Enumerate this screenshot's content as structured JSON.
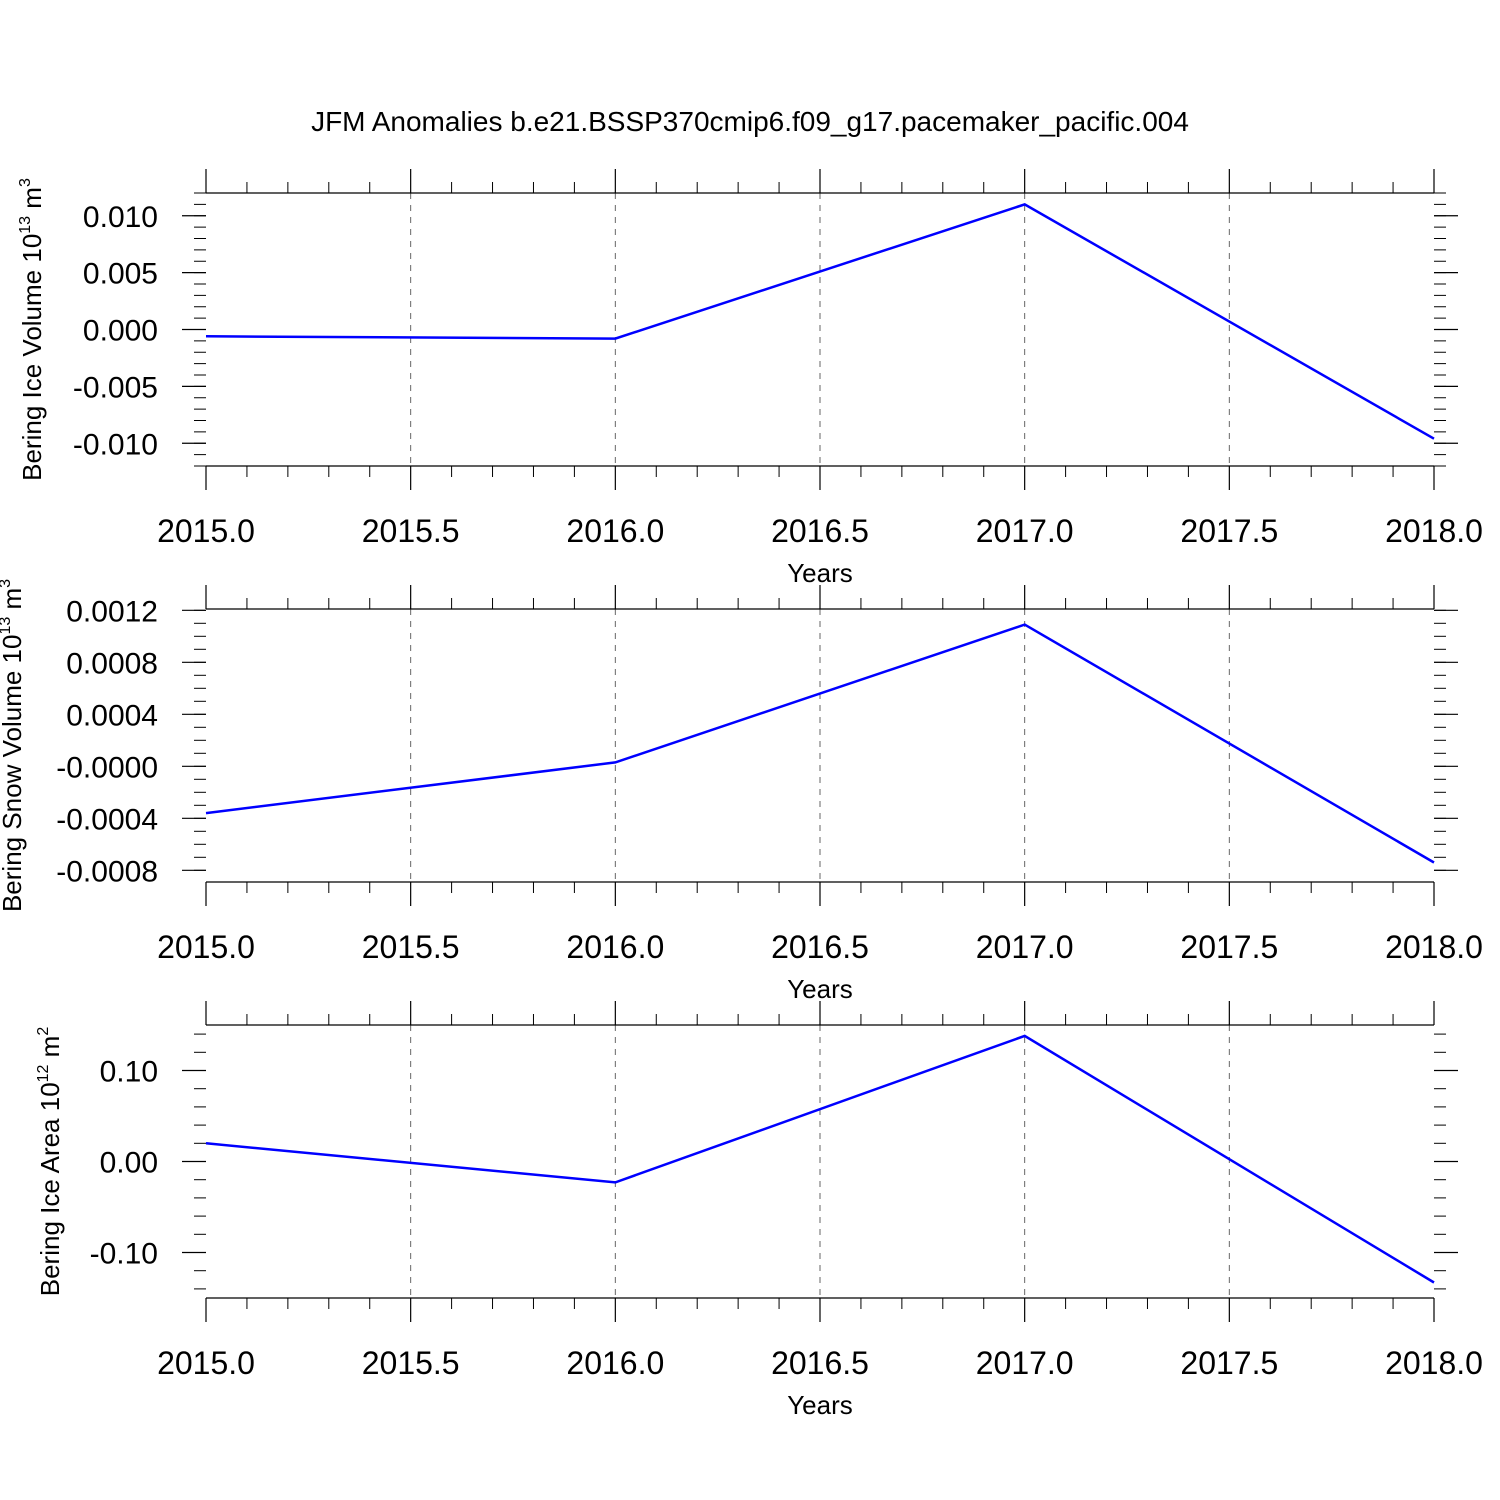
{
  "title": "JFM Anomalies b.e21.BSSP370cmip6.f09_g17.pacemaker_pacific.004",
  "line_color": "#0000ff",
  "chart_data": [
    {
      "type": "line",
      "xlabel": "Years",
      "ylabel": {
        "text": "Bering Ice Volume 10",
        "sup": "13",
        "unit": " m",
        "unit_sup": "3"
      },
      "xlim": [
        2015.0,
        2018.0
      ],
      "ylim": [
        -0.012,
        0.012
      ],
      "x_ticks": [
        2015.0,
        2015.5,
        2016.0,
        2016.5,
        2017.0,
        2017.5,
        2018.0
      ],
      "x_tick_labels": [
        "2015.0",
        "2015.5",
        "2016.0",
        "2016.5",
        "2017.0",
        "2017.5",
        "2018.0"
      ],
      "y_ticks": [
        0.01,
        0.005,
        0.0,
        -0.005,
        -0.01
      ],
      "y_tick_labels": [
        "0.010",
        "0.005",
        "0.000",
        "-0.005",
        "-0.010"
      ],
      "y_minor_step": 0.001,
      "x": [
        2015.0,
        2016.0,
        2017.0,
        2018.0
      ],
      "y": [
        -0.0006,
        -0.0008,
        0.011,
        -0.0096
      ]
    },
    {
      "type": "line",
      "xlabel": "Years",
      "ylabel": {
        "text": "Bering Snow Volume 10",
        "sup": "13",
        "unit": " m",
        "unit_sup": "3"
      },
      "xlim": [
        2015.0,
        2018.0
      ],
      "ylim": [
        -0.00089,
        0.00121
      ],
      "x_ticks": [
        2015.0,
        2015.5,
        2016.0,
        2016.5,
        2017.0,
        2017.5,
        2018.0
      ],
      "x_tick_labels": [
        "2015.0",
        "2015.5",
        "2016.0",
        "2016.5",
        "2017.0",
        "2017.5",
        "2018.0"
      ],
      "y_ticks": [
        0.0012,
        0.0008,
        0.0004,
        0.0,
        -0.0004,
        -0.0008
      ],
      "y_tick_labels": [
        "0.0012",
        "0.0008",
        "0.0004",
        "-0.0000",
        "-0.0004",
        "-0.0008"
      ],
      "y_minor_step": 0.0001,
      "x": [
        2015.0,
        2016.0,
        2017.0,
        2018.0
      ],
      "y": [
        -0.00036,
        3e-05,
        0.00109,
        -0.00074
      ]
    },
    {
      "type": "line",
      "xlabel": "Years",
      "ylabel": {
        "text": "Bering Ice Area 10",
        "sup": "12",
        "unit": " m",
        "unit_sup": "2"
      },
      "xlim": [
        2015.0,
        2018.0
      ],
      "ylim": [
        -0.15,
        0.15
      ],
      "x_ticks": [
        2015.0,
        2015.5,
        2016.0,
        2016.5,
        2017.0,
        2017.5,
        2018.0
      ],
      "x_tick_labels": [
        "2015.0",
        "2015.5",
        "2016.0",
        "2016.5",
        "2017.0",
        "2017.5",
        "2018.0"
      ],
      "y_ticks": [
        0.1,
        0.0,
        -0.1
      ],
      "y_tick_labels": [
        "0.10",
        "0.00",
        "-0.10"
      ],
      "y_minor_step": 0.02,
      "x": [
        2015.0,
        2016.0,
        2017.0,
        2018.0
      ],
      "y": [
        0.02,
        -0.023,
        0.138,
        -0.133
      ]
    }
  ]
}
